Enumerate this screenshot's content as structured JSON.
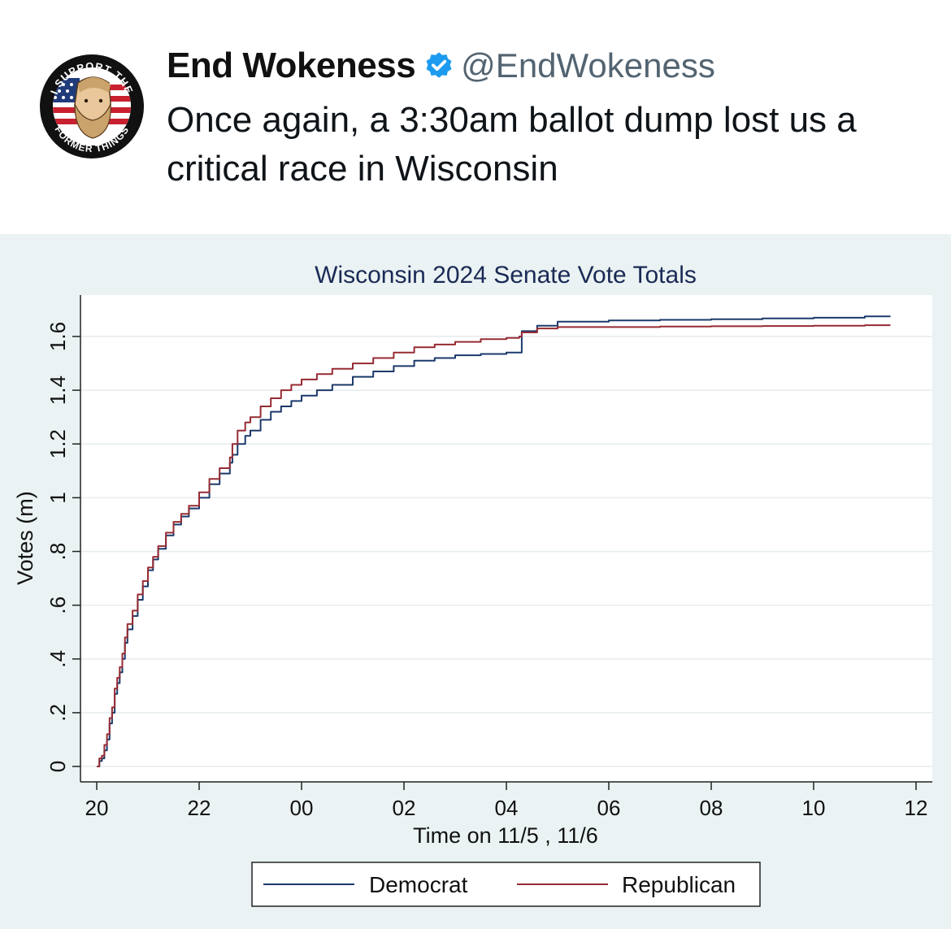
{
  "tweet": {
    "author_name": "End Wokeness",
    "handle": "@EndWokeness",
    "text": "Once again, a 3:30am ballot dump lost us a critical race in Wisconsin",
    "avatar_icon": "patriot-bearded-man-avatar-icon",
    "verified_icon": "verified-badge-icon",
    "avatar_text_top": "I SUPPORT THE",
    "avatar_text_bottom": "FORMER THINGS"
  },
  "colors": {
    "democrat": "#1b3a6b",
    "republican": "#962b33",
    "title": "#1a2a55",
    "panel_bg": "#eaf2f3",
    "verified": "#1d9bf0"
  },
  "chart_data": {
    "type": "line",
    "title": "Wisconsin 2024 Senate Vote Totals",
    "xlabel": "Time on 11/5 , 11/6",
    "ylabel": "Votes (m)",
    "xlim": [
      20,
      36
    ],
    "ylim": [
      0,
      1.6
    ],
    "x_ticks": [
      20,
      22,
      24,
      26,
      28,
      30,
      32,
      34,
      36
    ],
    "x_tick_labels": [
      "20",
      "22",
      "00",
      "02",
      "04",
      "06",
      "08",
      "10",
      "12"
    ],
    "y_ticks": [
      0,
      0.2,
      0.4,
      0.6,
      0.8,
      1.0,
      1.2,
      1.4,
      1.6
    ],
    "y_tick_labels": [
      "0",
      ".2",
      ".4",
      ".6",
      ".8",
      "1",
      "1.2",
      "1.4",
      "1.6"
    ],
    "grid": true,
    "step": true,
    "legend": "bottom",
    "series": [
      {
        "name": "Democrat",
        "color": "#1b3a6b",
        "x": [
          20.0,
          20.05,
          20.1,
          20.15,
          20.2,
          20.25,
          20.3,
          20.35,
          20.4,
          20.45,
          20.5,
          20.55,
          20.6,
          20.7,
          20.8,
          20.9,
          21.0,
          21.1,
          21.2,
          21.35,
          21.5,
          21.65,
          21.8,
          22.0,
          22.2,
          22.4,
          22.6,
          22.65,
          22.75,
          22.9,
          23.0,
          23.2,
          23.4,
          23.6,
          23.8,
          24.0,
          24.3,
          24.6,
          25.0,
          25.4,
          25.8,
          26.2,
          26.6,
          27.0,
          27.5,
          28.0,
          28.25,
          28.3,
          28.6,
          29.0,
          30.0,
          31.0,
          32.0,
          33.0,
          34.0,
          35.0,
          35.5
        ],
        "values": [
          0.0,
          0.02,
          0.03,
          0.06,
          0.1,
          0.16,
          0.2,
          0.27,
          0.31,
          0.35,
          0.4,
          0.46,
          0.51,
          0.56,
          0.62,
          0.67,
          0.73,
          0.77,
          0.81,
          0.86,
          0.9,
          0.93,
          0.96,
          1.0,
          1.05,
          1.09,
          1.13,
          1.16,
          1.2,
          1.23,
          1.25,
          1.29,
          1.32,
          1.34,
          1.36,
          1.38,
          1.4,
          1.42,
          1.45,
          1.47,
          1.49,
          1.51,
          1.52,
          1.53,
          1.535,
          1.54,
          1.54,
          1.62,
          1.64,
          1.655,
          1.66,
          1.662,
          1.664,
          1.667,
          1.67,
          1.675,
          1.675
        ]
      },
      {
        "name": "Republican",
        "color": "#962b33",
        "x": [
          20.0,
          20.05,
          20.1,
          20.15,
          20.2,
          20.25,
          20.3,
          20.35,
          20.4,
          20.45,
          20.5,
          20.55,
          20.6,
          20.7,
          20.8,
          20.9,
          21.0,
          21.1,
          21.2,
          21.35,
          21.5,
          21.65,
          21.8,
          22.0,
          22.2,
          22.4,
          22.6,
          22.65,
          22.75,
          22.9,
          23.0,
          23.2,
          23.4,
          23.6,
          23.8,
          24.0,
          24.3,
          24.6,
          25.0,
          25.4,
          25.8,
          26.2,
          26.6,
          27.0,
          27.5,
          28.0,
          28.25,
          28.3,
          28.6,
          29.0,
          30.0,
          31.0,
          32.0,
          33.0,
          34.0,
          35.0,
          35.5
        ],
        "values": [
          0.0,
          0.03,
          0.04,
          0.08,
          0.12,
          0.18,
          0.22,
          0.29,
          0.33,
          0.37,
          0.42,
          0.48,
          0.53,
          0.58,
          0.64,
          0.69,
          0.74,
          0.78,
          0.82,
          0.87,
          0.91,
          0.94,
          0.97,
          1.02,
          1.07,
          1.11,
          1.15,
          1.2,
          1.25,
          1.28,
          1.3,
          1.34,
          1.37,
          1.4,
          1.42,
          1.44,
          1.46,
          1.48,
          1.5,
          1.52,
          1.54,
          1.56,
          1.57,
          1.58,
          1.59,
          1.595,
          1.6,
          1.615,
          1.63,
          1.635,
          1.635,
          1.637,
          1.638,
          1.639,
          1.64,
          1.642,
          1.642
        ]
      }
    ]
  }
}
